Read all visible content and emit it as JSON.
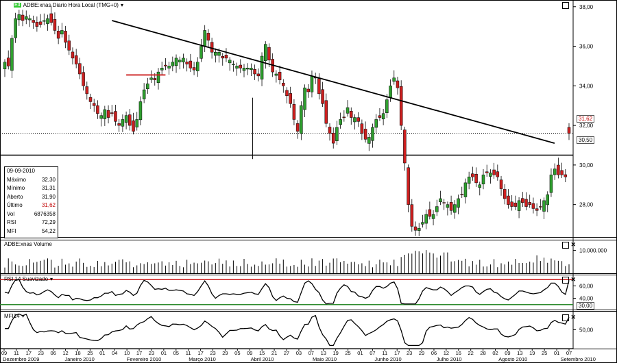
{
  "panes": {
    "price": {
      "title": "ADBE:xnas Diario Hora Local (TMG+0)",
      "badge": "Ed"
    },
    "volume": {
      "title": "ADBE:xnas Volume"
    },
    "rsi": {
      "title": "RSI 14 Suavizado"
    },
    "mfi": {
      "title": "MFI14"
    }
  },
  "ohlc_box": {
    "date": "09-09-2010",
    "rows": [
      {
        "label": "Máximo",
        "value": "32,30"
      },
      {
        "label": "Mínimo",
        "value": "31,31"
      },
      {
        "label": "Aberto",
        "value": "31,90"
      },
      {
        "label": "Último",
        "value": "31,62",
        "highlight": true
      },
      {
        "label": "Vol",
        "value": "6876358"
      },
      {
        "label": "RSI",
        "value": "72,29"
      },
      {
        "label": "MFI",
        "value": "54,22"
      }
    ]
  },
  "tags": {
    "last": "31,62",
    "support": "30,50",
    "rsi_low": "30,00"
  },
  "colors": {
    "up": "#2e9e2e",
    "down": "#cc1f1f",
    "trend": "#000000",
    "rsi_upper": "#cc1f1f",
    "rsi_lower": "#2e8b2e"
  },
  "chart_data": {
    "type": "candlestick",
    "price_axis": {
      "labels": [
        "38,00",
        "36,00",
        "34,00",
        "32,00",
        "30,00",
        "28,00"
      ],
      "ylim": [
        26.5,
        38.2
      ]
    },
    "volume_axis": {
      "labels": [
        "10.000.000"
      ],
      "ylim": [
        0,
        14000000
      ]
    },
    "rsi_axis": {
      "labels": [
        "60,00",
        "40,00"
      ],
      "ylim": [
        22,
        78
      ]
    },
    "mfi_axis": {
      "labels": [
        "50,00"
      ],
      "ylim": [
        20,
        80
      ]
    },
    "day_labels": [
      "09",
      "11",
      "17",
      "23",
      "06",
      "12",
      "18",
      "25",
      "01",
      "04",
      "10",
      "17",
      "23",
      "01",
      "05",
      "11",
      "17",
      "23",
      "29",
      "05",
      "09",
      "15",
      "21",
      "27",
      "03",
      "07",
      "13",
      "19",
      "25",
      "01",
      "07",
      "11",
      "17",
      "23",
      "29",
      "06",
      "12",
      "16",
      "22",
      "28",
      "02",
      "09",
      "13",
      "19",
      "25",
      "01",
      "07"
    ],
    "month_labels": [
      "Dezembro 2009",
      "Janeiro 2010",
      "Fevereiro 2010",
      "Março 2010",
      "Abril 2010",
      "Maio 2010",
      "Junho 2010",
      "Julho 2010",
      "Agosto 2010",
      "Setembro 2010"
    ],
    "closes": [
      35.2,
      35.0,
      36.4,
      37.4,
      37.6,
      37.3,
      37.5,
      37.4,
      37.2,
      37.0,
      37.1,
      37.3,
      37.4,
      37.2,
      36.8,
      36.4,
      36.8,
      36.2,
      35.8,
      35.4,
      35.1,
      34.6,
      34.0,
      33.6,
      33.2,
      33.0,
      32.6,
      32.5,
      32.8,
      32.4,
      32.6,
      32.2,
      32.0,
      32.3,
      32.5,
      32.0,
      31.7,
      32.3,
      33.2,
      33.8,
      34.1,
      34.4,
      34.3,
      34.7,
      34.9,
      35.0,
      35.0,
      35.2,
      35.4,
      35.3,
      35.4,
      35.1,
      34.9,
      34.8,
      35.2,
      36.0,
      36.8,
      36.3,
      35.7,
      35.7,
      35.7,
      35.4,
      35.4,
      35.3,
      35.1,
      35.0,
      34.9,
      34.9,
      34.9,
      34.9,
      34.6,
      34.5,
      35.5,
      36.1,
      35.3,
      34.7,
      34.6,
      34.3,
      34.0,
      33.5,
      33.1,
      32.3,
      31.7,
      33.0,
      33.9,
      33.7,
      34.5,
      34.4,
      33.6,
      33.1,
      32.1,
      31.6,
      31.1,
      31.9,
      32.3,
      32.4,
      32.9,
      32.4,
      32.4,
      32.2,
      31.6,
      31.3,
      31.4,
      31.9,
      32.3,
      32.4,
      32.6,
      33.3,
      34.0,
      34.4,
      33.9,
      32.0,
      30.1,
      28.0,
      26.9,
      26.7,
      26.8,
      27.1,
      27.5,
      27.4,
      27.5,
      27.9,
      28.3,
      28.1,
      28.0,
      27.7,
      28.0,
      28.3,
      28.5,
      29.1,
      29.4,
      29.4,
      29.1,
      29.0,
      29.5,
      29.6,
      29.6,
      29.5,
      29.4,
      28.8,
      28.3,
      28.0,
      27.9,
      27.9,
      28.2,
      28.1,
      27.9,
      28.0,
      27.8,
      27.7,
      27.9,
      28.2,
      28.5,
      29.5,
      29.8,
      29.5,
      29.5,
      29.4,
      31.6
    ],
    "trendline": [
      [
        30,
        37.3
      ],
      [
        153,
        31.1
      ]
    ],
    "support_level": 30.5,
    "resistance_segment": {
      "from": 34,
      "to": 45,
      "value": 34.55
    },
    "rsi_bands": [
      70,
      30
    ],
    "volume_index_range": [
      0,
      154
    ]
  }
}
